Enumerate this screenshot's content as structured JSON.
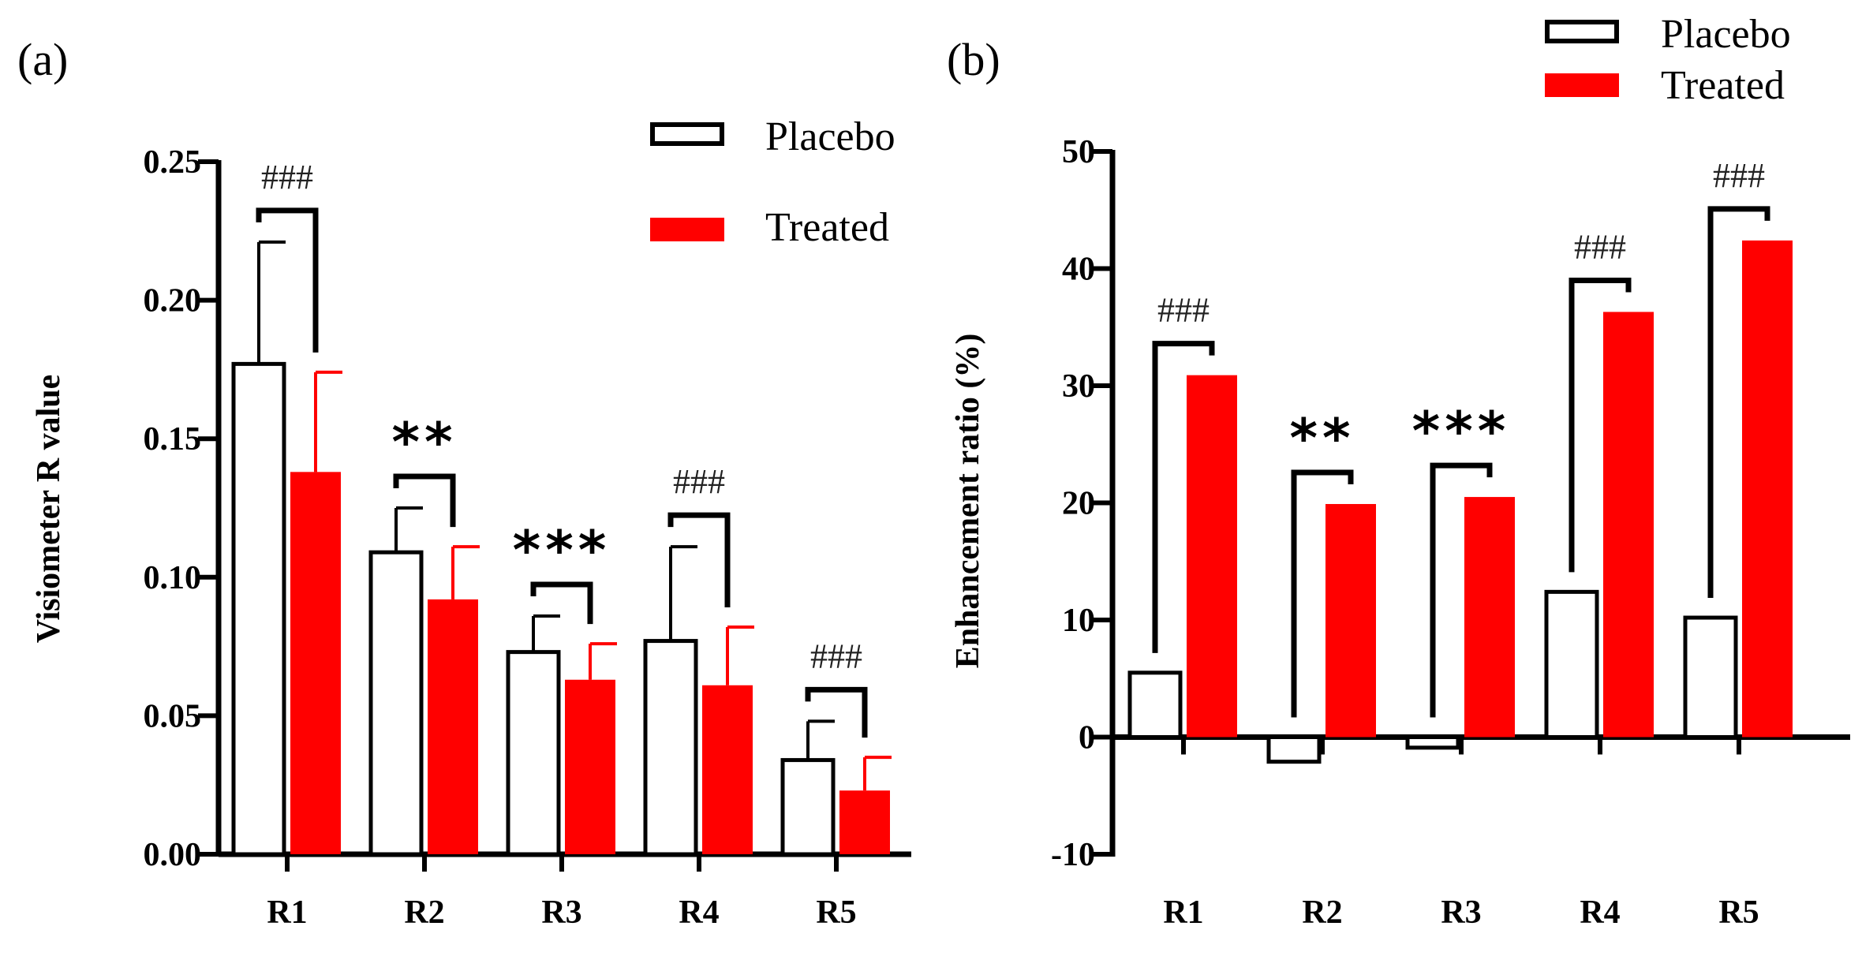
{
  "chart_data": [
    {
      "panel": "(a)",
      "type": "bar",
      "ylabel": "Visiometer R value",
      "ylim": [
        0,
        0.25
      ],
      "yticks": [
        "0.00",
        "0.05",
        "0.10",
        "0.15",
        "0.20",
        "0.25"
      ],
      "categories": [
        "R1",
        "R2",
        "R3",
        "R4",
        "R5"
      ],
      "series": [
        {
          "name": "Placebo",
          "color": "#ffffff",
          "stroke": "#000000",
          "values": [
            0.177,
            0.109,
            0.073,
            0.077,
            0.034
          ],
          "errors": [
            0.044,
            0.016,
            0.013,
            0.034,
            0.014
          ]
        },
        {
          "name": "Treated",
          "color": "#ff0000",
          "stroke": "#ff0000",
          "values": [
            0.138,
            0.092,
            0.063,
            0.061,
            0.023
          ],
          "errors": [
            0.036,
            0.019,
            0.013,
            0.021,
            0.012
          ]
        }
      ],
      "significance": [
        "###",
        "**",
        "***",
        "###",
        "###"
      ],
      "legend": [
        "Placebo",
        "Treated"
      ],
      "legend_position": "top-right",
      "grid": false
    },
    {
      "panel": "(b)",
      "type": "bar",
      "ylabel": "Enhancement ratio (%)",
      "ylim": [
        -10,
        50
      ],
      "yticks": [
        "-10",
        "0",
        "10",
        "20",
        "30",
        "40",
        "50"
      ],
      "categories": [
        "R1",
        "R2",
        "R3",
        "R4",
        "R5"
      ],
      "series": [
        {
          "name": "Placebo",
          "color": "#ffffff",
          "stroke": "#000000",
          "values": [
            5.5,
            -2.1,
            -0.9,
            12.4,
            10.2
          ]
        },
        {
          "name": "Treated",
          "color": "#ff0000",
          "stroke": "#ff0000",
          "values": [
            30.9,
            19.9,
            20.5,
            36.3,
            42.4
          ]
        }
      ],
      "significance": [
        "###",
        "**",
        "***",
        "###",
        "###"
      ],
      "legend": [
        "Placebo",
        "Treated"
      ],
      "legend_position": "top-right",
      "grid": false
    }
  ]
}
